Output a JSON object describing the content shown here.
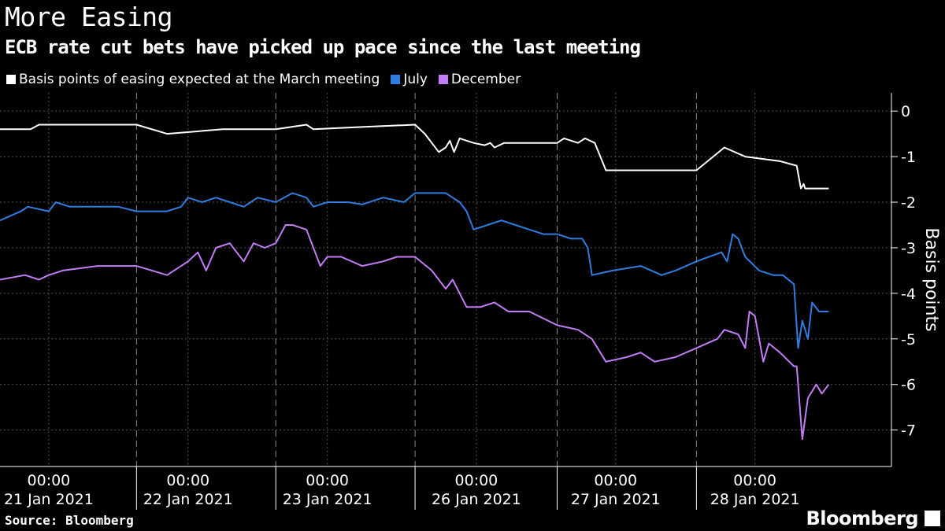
{
  "header": {
    "title": "More Easing",
    "subtitle": "ECB rate cut bets have picked up pace since the last meeting"
  },
  "footer": {
    "source": "Source: Bloomberg",
    "brand": "Bloomberg"
  },
  "colors": {
    "march": "#ffffff",
    "july": "#2f7de1",
    "december": "#c27cf6",
    "grid": "#555555"
  },
  "chart_data": {
    "type": "line",
    "ylabel": "Basis points",
    "ylim": [
      -7.8,
      0.4
    ],
    "yticks": [
      0,
      -1,
      -2,
      -3,
      -4,
      -5,
      -6,
      -7
    ],
    "ytick_labels": [
      "0",
      "-1",
      "-2",
      "-3",
      "-4",
      "-5",
      "-6",
      "-7"
    ],
    "x_range": [
      0,
      6.4
    ],
    "x_ticks": [
      {
        "x": 0.35,
        "time": "00:00",
        "date": "21 Jan 2021"
      },
      {
        "x": 1.35,
        "time": "00:00",
        "date": "22 Jan 2021"
      },
      {
        "x": 2.35,
        "time": "00:00",
        "date": "23 Jan 2021"
      },
      {
        "x": 3.42,
        "time": "00:00",
        "date": "26 Jan 2021"
      },
      {
        "x": 4.42,
        "time": "00:00",
        "date": "27 Jan 2021"
      },
      {
        "x": 5.42,
        "time": "00:00",
        "date": "28 Jan 2021"
      }
    ],
    "day_boundaries": [
      0.98,
      1.98,
      2.98,
      4.0,
      5.0
    ],
    "legend_position": "top-left",
    "series": [
      {
        "name": "Basis points of easing expected at the March meeting",
        "key": "march",
        "points": [
          [
            0.0,
            -0.4
          ],
          [
            0.22,
            -0.4
          ],
          [
            0.28,
            -0.3
          ],
          [
            0.98,
            -0.3
          ],
          [
            1.2,
            -0.5
          ],
          [
            1.6,
            -0.4
          ],
          [
            1.98,
            -0.4
          ],
          [
            2.2,
            -0.3
          ],
          [
            2.25,
            -0.4
          ],
          [
            2.6,
            -0.35
          ],
          [
            2.98,
            -0.3
          ],
          [
            3.05,
            -0.5
          ],
          [
            3.15,
            -0.9
          ],
          [
            3.2,
            -0.8
          ],
          [
            3.23,
            -0.65
          ],
          [
            3.26,
            -0.9
          ],
          [
            3.3,
            -0.6
          ],
          [
            3.4,
            -0.7
          ],
          [
            3.48,
            -0.75
          ],
          [
            3.52,
            -0.7
          ],
          [
            3.55,
            -0.8
          ],
          [
            3.62,
            -0.7
          ],
          [
            4.0,
            -0.7
          ],
          [
            4.05,
            -0.6
          ],
          [
            4.15,
            -0.7
          ],
          [
            4.2,
            -0.6
          ],
          [
            4.27,
            -0.7
          ],
          [
            4.35,
            -1.3
          ],
          [
            5.0,
            -1.3
          ],
          [
            5.2,
            -0.8
          ],
          [
            5.35,
            -1.0
          ],
          [
            5.6,
            -1.1
          ],
          [
            5.72,
            -1.2
          ],
          [
            5.75,
            -1.7
          ],
          [
            5.77,
            -1.6
          ],
          [
            5.78,
            -1.7
          ],
          [
            5.95,
            -1.7
          ]
        ]
      },
      {
        "name": "July",
        "key": "july",
        "points": [
          [
            0.0,
            -2.4
          ],
          [
            0.15,
            -2.2
          ],
          [
            0.2,
            -2.1
          ],
          [
            0.35,
            -2.2
          ],
          [
            0.4,
            -2.0
          ],
          [
            0.5,
            -2.1
          ],
          [
            0.85,
            -2.1
          ],
          [
            0.98,
            -2.2
          ],
          [
            1.2,
            -2.2
          ],
          [
            1.3,
            -2.1
          ],
          [
            1.35,
            -1.9
          ],
          [
            1.45,
            -2.0
          ],
          [
            1.55,
            -1.9
          ],
          [
            1.65,
            -2.0
          ],
          [
            1.75,
            -2.1
          ],
          [
            1.85,
            -1.9
          ],
          [
            1.98,
            -2.0
          ],
          [
            2.1,
            -1.8
          ],
          [
            2.2,
            -1.9
          ],
          [
            2.25,
            -2.1
          ],
          [
            2.35,
            -2.0
          ],
          [
            2.5,
            -2.0
          ],
          [
            2.6,
            -2.05
          ],
          [
            2.75,
            -1.9
          ],
          [
            2.9,
            -2.0
          ],
          [
            2.98,
            -1.8
          ],
          [
            3.2,
            -1.8
          ],
          [
            3.3,
            -2.0
          ],
          [
            3.35,
            -2.2
          ],
          [
            3.4,
            -2.6
          ],
          [
            3.5,
            -2.5
          ],
          [
            3.6,
            -2.4
          ],
          [
            3.7,
            -2.5
          ],
          [
            3.8,
            -2.6
          ],
          [
            3.9,
            -2.7
          ],
          [
            4.0,
            -2.7
          ],
          [
            4.1,
            -2.8
          ],
          [
            4.18,
            -2.8
          ],
          [
            4.22,
            -3.0
          ],
          [
            4.25,
            -3.6
          ],
          [
            4.4,
            -3.5
          ],
          [
            4.6,
            -3.4
          ],
          [
            4.75,
            -3.6
          ],
          [
            4.85,
            -3.5
          ],
          [
            5.0,
            -3.3
          ],
          [
            5.18,
            -3.1
          ],
          [
            5.22,
            -3.3
          ],
          [
            5.26,
            -2.7
          ],
          [
            5.3,
            -2.8
          ],
          [
            5.35,
            -3.2
          ],
          [
            5.45,
            -3.5
          ],
          [
            5.55,
            -3.6
          ],
          [
            5.62,
            -3.6
          ],
          [
            5.7,
            -3.8
          ],
          [
            5.73,
            -5.2
          ],
          [
            5.76,
            -4.6
          ],
          [
            5.8,
            -5.0
          ],
          [
            5.83,
            -4.2
          ],
          [
            5.88,
            -4.4
          ],
          [
            5.95,
            -4.4
          ]
        ]
      },
      {
        "name": "December",
        "key": "december",
        "points": [
          [
            0.0,
            -3.7
          ],
          [
            0.18,
            -3.6
          ],
          [
            0.28,
            -3.7
          ],
          [
            0.35,
            -3.6
          ],
          [
            0.45,
            -3.5
          ],
          [
            0.7,
            -3.4
          ],
          [
            0.98,
            -3.4
          ],
          [
            1.2,
            -3.6
          ],
          [
            1.35,
            -3.3
          ],
          [
            1.42,
            -3.1
          ],
          [
            1.48,
            -3.5
          ],
          [
            1.55,
            -3.0
          ],
          [
            1.65,
            -2.9
          ],
          [
            1.75,
            -3.3
          ],
          [
            1.82,
            -2.9
          ],
          [
            1.9,
            -3.0
          ],
          [
            1.98,
            -2.9
          ],
          [
            2.05,
            -2.5
          ],
          [
            2.1,
            -2.5
          ],
          [
            2.2,
            -2.6
          ],
          [
            2.25,
            -3.0
          ],
          [
            2.3,
            -3.4
          ],
          [
            2.35,
            -3.2
          ],
          [
            2.45,
            -3.2
          ],
          [
            2.6,
            -3.4
          ],
          [
            2.75,
            -3.3
          ],
          [
            2.85,
            -3.2
          ],
          [
            2.98,
            -3.2
          ],
          [
            3.1,
            -3.5
          ],
          [
            3.2,
            -3.9
          ],
          [
            3.25,
            -3.7
          ],
          [
            3.3,
            -4.0
          ],
          [
            3.35,
            -4.3
          ],
          [
            3.45,
            -4.3
          ],
          [
            3.55,
            -4.2
          ],
          [
            3.65,
            -4.4
          ],
          [
            3.8,
            -4.4
          ],
          [
            4.0,
            -4.7
          ],
          [
            4.15,
            -4.8
          ],
          [
            4.25,
            -5.0
          ],
          [
            4.35,
            -5.5
          ],
          [
            4.5,
            -5.4
          ],
          [
            4.6,
            -5.3
          ],
          [
            4.7,
            -5.5
          ],
          [
            4.85,
            -5.4
          ],
          [
            5.0,
            -5.2
          ],
          [
            5.15,
            -5.0
          ],
          [
            5.2,
            -4.8
          ],
          [
            5.3,
            -4.9
          ],
          [
            5.35,
            -5.2
          ],
          [
            5.38,
            -4.4
          ],
          [
            5.42,
            -4.5
          ],
          [
            5.48,
            -5.5
          ],
          [
            5.52,
            -5.1
          ],
          [
            5.6,
            -5.3
          ],
          [
            5.7,
            -5.6
          ],
          [
            5.72,
            -5.6
          ],
          [
            5.76,
            -7.2
          ],
          [
            5.8,
            -6.3
          ],
          [
            5.86,
            -6.0
          ],
          [
            5.9,
            -6.2
          ],
          [
            5.95,
            -6.0
          ]
        ]
      }
    ]
  }
}
